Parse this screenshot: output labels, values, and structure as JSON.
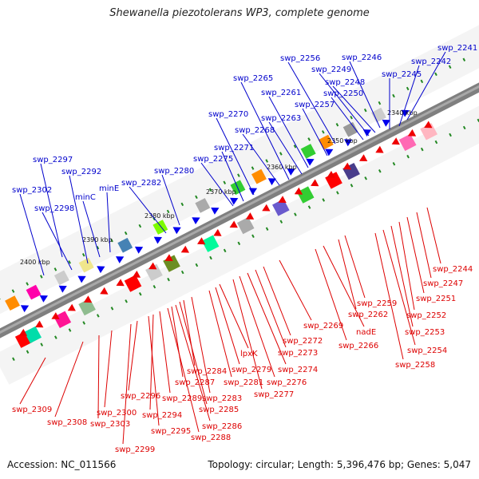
{
  "title": "Shewanella piezotolerans WP3, complete genome",
  "accession": "Accession: NC_011566",
  "summary": "Topology: circular; Length: 5,396,476 bp; Genes: 5,047",
  "colors": {
    "forward_label": "#0000cc",
    "reverse_label": "#dd0000",
    "backbone": "#7f7f7f",
    "tick_mark": "#228822"
  },
  "ticks": [
    "2340 kbp",
    "2350 kbp",
    "2360 kbp",
    "2370 kbp",
    "2380 kbp",
    "2390 kbp",
    "2400 kbp"
  ],
  "forward_genes": [
    "swp_2241",
    "swp_2242",
    "swp_2245",
    "swp_2246",
    "swp_2248",
    "swp_2249",
    "swp_2250",
    "swp_2256",
    "swp_2257",
    "swp_2261",
    "swp_2263",
    "swp_2265",
    "swp_2268",
    "swp_2270",
    "swp_2271",
    "swp_2275",
    "swp_2280",
    "swp_2282",
    "minE",
    "minC",
    "swp_2292",
    "swp_2297",
    "swp_2298",
    "swp_2302"
  ],
  "reverse_genes": [
    "swp_2244",
    "swp_2247",
    "swp_2251",
    "swp_2252",
    "swp_2253",
    "swp_2254",
    "swp_2258",
    "swp_2259",
    "swp_2262",
    "nadE",
    "swp_2266",
    "swp_2269",
    "swp_2272",
    "swp_2273",
    "swp_2274",
    "swp_2276",
    "swp_2277",
    "lpxK",
    "swp_2279",
    "swp_2281",
    "swp_2283",
    "swp_2284",
    "swp_2285",
    "swp_2286",
    "swp_2287",
    "swp_2288",
    "swp_2289",
    "swp_2294",
    "swp_2295",
    "swp_2296",
    "swp_2299",
    "swp_2300",
    "swp_2303",
    "swp_2308",
    "swp_2309"
  ]
}
